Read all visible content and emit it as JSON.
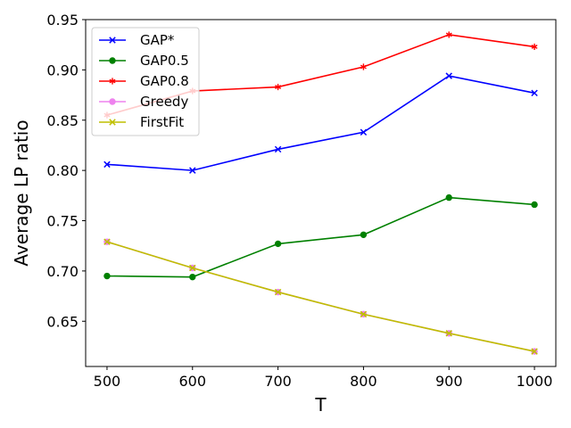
{
  "chart_data": {
    "type": "line",
    "title": "",
    "xlabel": "T",
    "ylabel": "Average LP ratio",
    "x": [
      500,
      600,
      700,
      800,
      900,
      1000
    ],
    "xlim": [
      475,
      1025
    ],
    "ylim": [
      0.605,
      0.95
    ],
    "xticks": [
      500,
      600,
      700,
      800,
      900,
      1000
    ],
    "yticks": [
      0.65,
      0.7,
      0.75,
      0.8,
      0.85,
      0.9,
      0.95
    ],
    "ytick_labels": [
      "0.65",
      "0.70",
      "0.75",
      "0.80",
      "0.85",
      "0.90",
      "0.95"
    ],
    "grid": false,
    "legend_position": "top-left",
    "series": [
      {
        "name": "GAP*",
        "color": "#0000ff",
        "marker": "x",
        "values": [
          0.806,
          0.8,
          0.821,
          0.838,
          0.894,
          0.877
        ]
      },
      {
        "name": "GAP0.5",
        "color": "#008000",
        "marker": "o",
        "values": [
          0.695,
          0.694,
          0.727,
          0.736,
          0.773,
          0.766
        ]
      },
      {
        "name": "GAP0.8",
        "color": "#ff0000",
        "marker": "star",
        "values": [
          0.855,
          0.879,
          0.883,
          0.903,
          0.935,
          0.923
        ]
      },
      {
        "name": "Greedy",
        "color": "#ee82ee",
        "marker": "o",
        "values": [
          0.729,
          0.703,
          0.679,
          0.657,
          0.638,
          0.62
        ]
      },
      {
        "name": "FirstFit",
        "color": "#bfbf00",
        "marker": "x",
        "values": [
          0.729,
          0.703,
          0.679,
          0.657,
          0.638,
          0.62
        ]
      }
    ]
  }
}
